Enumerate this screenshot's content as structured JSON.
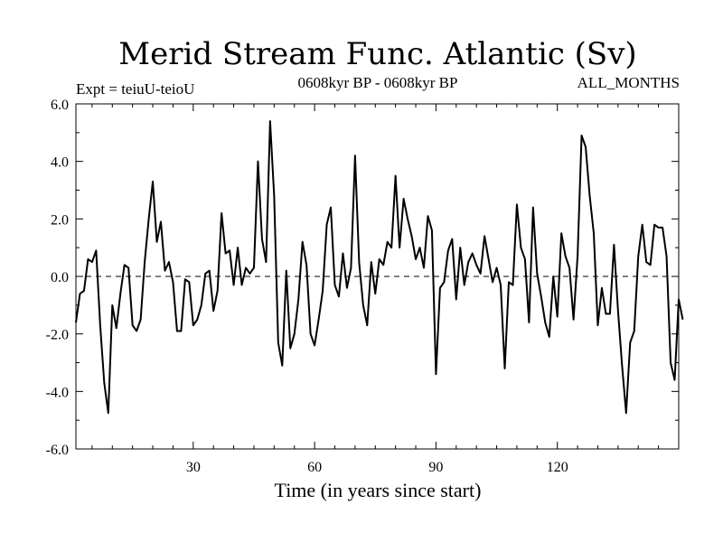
{
  "chart_data": {
    "type": "line",
    "title": "Merid Stream Func. Atlantic (Sv)",
    "subtitle_left": "Expt = teiuU-teioU",
    "subtitle_center": "0608kyr BP - 0608kyr BP",
    "subtitle_right": "ALL_MONTHS",
    "xlabel": "Time (in years since start)",
    "ylabel": "",
    "xlim": [
      1,
      150
    ],
    "ylim": [
      -6,
      6
    ],
    "x_ticks": [
      30,
      60,
      90,
      120
    ],
    "x_tick_labels": [
      "30",
      "60",
      "90",
      "120"
    ],
    "y_ticks": [
      -6,
      -4,
      -2,
      0,
      2,
      4,
      6
    ],
    "y_tick_labels": [
      "-6.0",
      "-4.0",
      "-2.0",
      "0.0",
      "2.0",
      "4.0",
      "6.0"
    ],
    "zero_line": true,
    "series": [
      {
        "name": "Merid Stream Func. Atlantic",
        "x_start": 1,
        "x_step": 1,
        "values": [
          -1.6,
          -0.6,
          -0.5,
          0.6,
          0.5,
          0.9,
          -1.7,
          -3.7,
          -4.75,
          -1.0,
          -1.8,
          -0.6,
          0.4,
          0.3,
          -1.7,
          -1.9,
          -1.5,
          0.5,
          2.0,
          3.3,
          1.2,
          1.9,
          0.2,
          0.5,
          -0.2,
          -1.9,
          -1.9,
          -0.1,
          -0.2,
          -1.7,
          -1.5,
          -1.0,
          0.1,
          0.2,
          -1.2,
          -0.5,
          2.2,
          0.8,
          0.9,
          -0.3,
          1.0,
          -0.3,
          0.3,
          0.1,
          0.3,
          4.0,
          1.3,
          0.5,
          5.4,
          2.8,
          -2.3,
          -3.1,
          0.2,
          -2.5,
          -2.0,
          -0.8,
          1.2,
          0.4,
          -2.0,
          -2.4,
          -1.5,
          -0.5,
          1.8,
          2.4,
          -0.3,
          -0.7,
          0.8,
          -0.4,
          0.3,
          4.2,
          0.5,
          -1.0,
          -1.7,
          0.5,
          -0.6,
          0.6,
          0.4,
          1.2,
          1.0,
          3.5,
          1.0,
          2.7,
          2.0,
          1.4,
          0.6,
          1.0,
          0.3,
          2.1,
          1.6,
          -3.4,
          -0.4,
          -0.2,
          0.9,
          1.3,
          -0.8,
          1.0,
          -0.3,
          0.5,
          0.8,
          0.4,
          0.1,
          1.4,
          0.6,
          -0.2,
          0.3,
          -0.3,
          -3.2,
          -0.2,
          -0.3,
          2.5,
          1.0,
          0.6,
          -1.6,
          2.4,
          0.1,
          -0.7,
          -1.6,
          -2.1,
          0.0,
          -1.4,
          1.5,
          0.7,
          0.3,
          -1.5,
          0.7,
          4.9,
          4.5,
          2.8,
          1.5,
          -1.7,
          -0.4,
          -1.3,
          -1.3,
          1.1,
          -1.2,
          -3.1,
          -4.75,
          -2.3,
          -1.9,
          0.7,
          1.8,
          0.5,
          0.4,
          1.8,
          1.7,
          1.7,
          0.7,
          -3.0,
          -3.6,
          -0.8,
          -1.5
        ]
      }
    ]
  }
}
